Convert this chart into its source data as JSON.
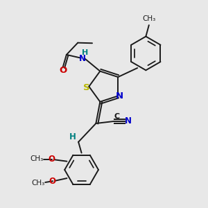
{
  "background_color": "#e8e8e8",
  "bond_color": "#1a1a1a",
  "sulfur_color": "#b8b800",
  "nitrogen_color": "#0000cc",
  "oxygen_color": "#cc0000",
  "teal_color": "#008080",
  "figsize": [
    3.0,
    3.0
  ],
  "dpi": 100,
  "xlim": [
    0,
    10
  ],
  "ylim": [
    0,
    10
  ]
}
